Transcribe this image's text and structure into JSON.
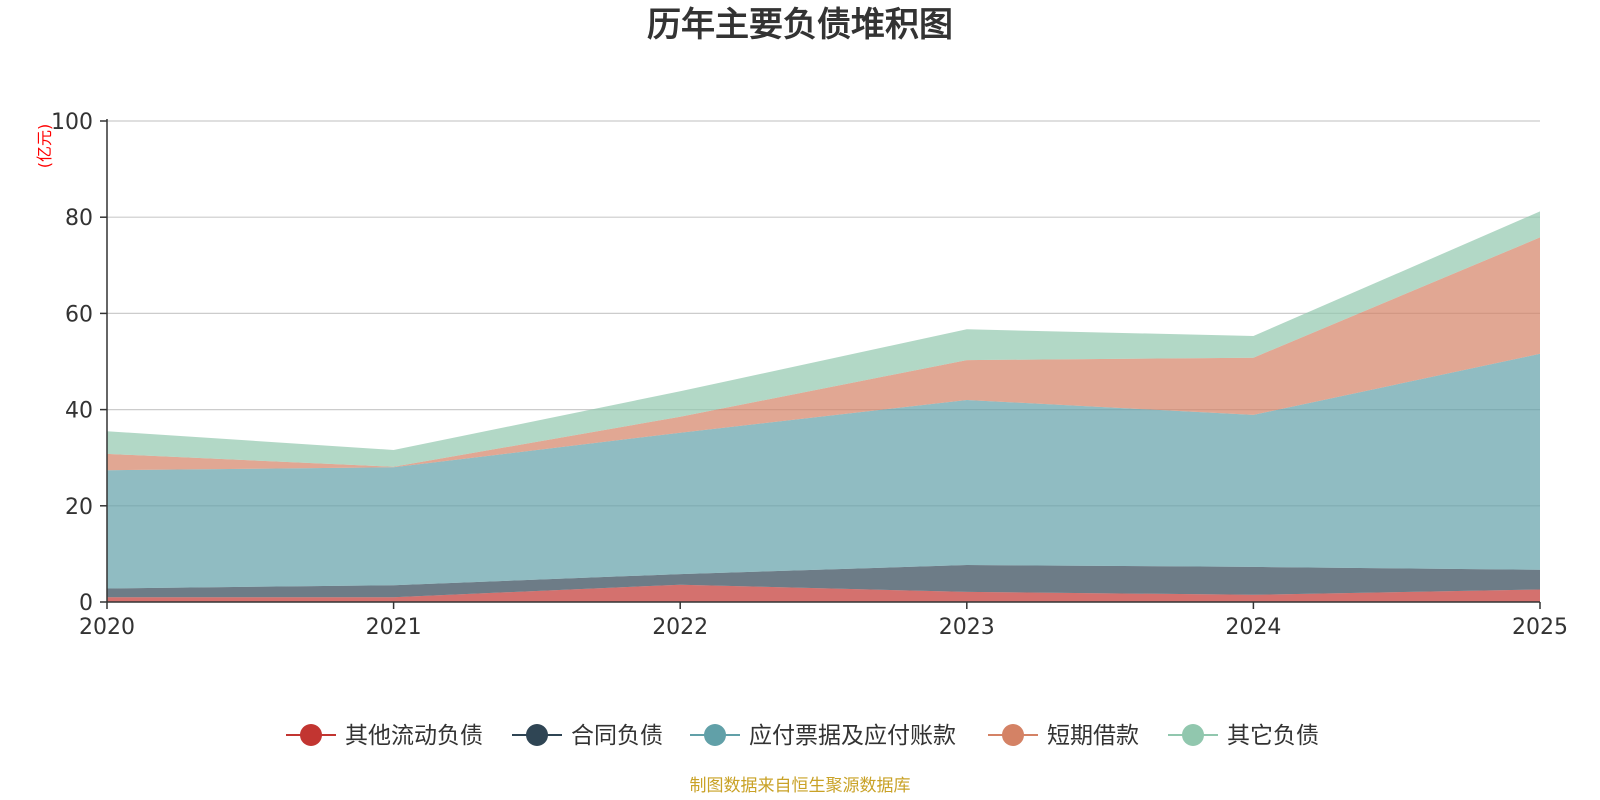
{
  "chart_data": {
    "type": "area",
    "stacked": true,
    "title": "历年主要负债堆积图",
    "y_unit": "(亿元)",
    "x": [
      "2020",
      "2021",
      "2022",
      "2023",
      "2024",
      "2025"
    ],
    "ylim": [
      0,
      100
    ],
    "y_ticks": [
      "0",
      "20",
      "40",
      "60",
      "80",
      "100"
    ],
    "grid": true,
    "legend_position": "bottom",
    "series": [
      {
        "name": "其他流动负债",
        "color": "#c23531",
        "values": [
          1.0,
          1.0,
          3.6,
          2.1,
          1.5,
          2.6
        ]
      },
      {
        "name": "合同负债",
        "color": "#2f4554",
        "values": [
          1.8,
          2.5,
          2.2,
          5.6,
          5.8,
          4.1
        ]
      },
      {
        "name": "应付票据及应付账款",
        "color": "#61a0a8",
        "values": [
          24.6,
          24.5,
          29.4,
          34.3,
          31.6,
          44.9
        ]
      },
      {
        "name": "短期借款",
        "color": "#d48265",
        "values": [
          3.4,
          0.1,
          3.3,
          8.3,
          11.9,
          24.2
        ]
      },
      {
        "name": "其它负债",
        "color": "#91c7ae",
        "values": [
          4.7,
          3.5,
          5.3,
          6.4,
          4.5,
          5.4
        ]
      }
    ]
  },
  "footer": {
    "source": "制图数据来自恒生聚源数据库",
    "source_color": "#c9a227"
  },
  "unit_color": "#ff0000"
}
